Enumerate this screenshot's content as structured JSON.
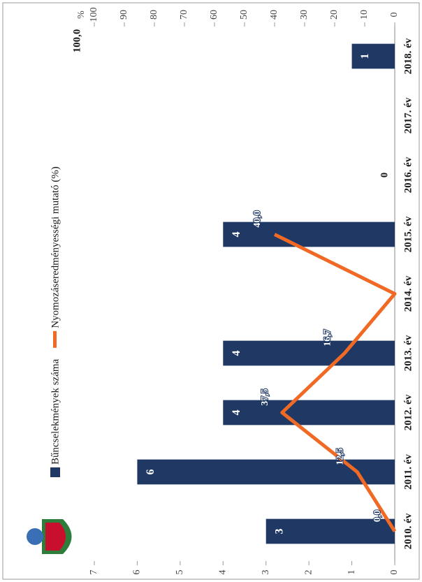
{
  "chart_data": {
    "type": "bar",
    "categories": [
      "2010. év",
      "2011. év",
      "2012. év",
      "2013. év",
      "2014. év",
      "2015. év",
      "2016. év",
      "2017. év",
      "2018. év"
    ],
    "series": [
      {
        "name": "Bűncselekmények száma",
        "type": "bar",
        "color": "#1f3864",
        "values": [
          3,
          6,
          4,
          4,
          null,
          4,
          0,
          null,
          1
        ]
      },
      {
        "name": "Nyomozáseredményességi mutató (%)",
        "type": "line",
        "axis": "y2",
        "color": "#f06a25",
        "values": [
          0,
          12.5,
          37.5,
          16.7,
          0,
          40,
          null,
          null,
          100
        ],
        "value_labels": [
          "0,0",
          "12,5",
          "37,5",
          "16,7",
          null,
          "40,0",
          null,
          null,
          "100,0"
        ]
      }
    ],
    "ylim": [
      0,
      7
    ],
    "yticks": [
      0,
      1,
      2,
      3,
      4,
      5,
      6,
      7
    ],
    "y2lim": [
      0,
      100
    ],
    "y2ticks": [
      0,
      10,
      20,
      30,
      40,
      50,
      60,
      70,
      80,
      90,
      100
    ],
    "y2label": "%"
  }
}
